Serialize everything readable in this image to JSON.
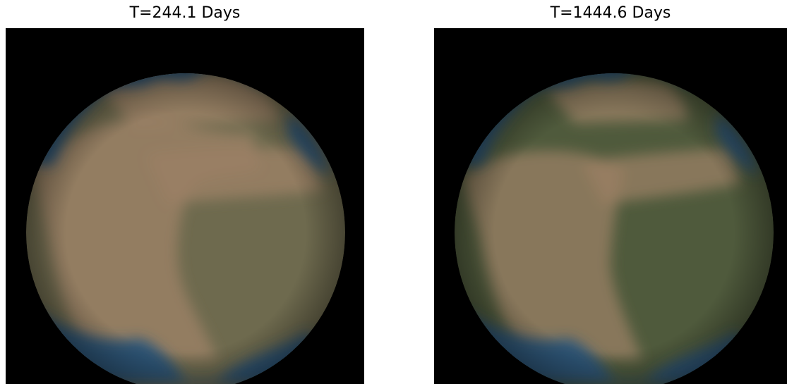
{
  "panels": [
    {
      "title": "T=244.1 Days",
      "land_color": "#6e6a4e",
      "desert_color": "#9a8064",
      "ice_color": "#2f5678",
      "vegetation_fraction": 0.4
    },
    {
      "title": "T=1444.6 Days",
      "land_color": "#4f5a3c",
      "desert_color": "#9a8064",
      "ice_color": "#2f5678",
      "vegetation_fraction": 0.7
    }
  ],
  "colors": {
    "background": "#000000",
    "ice_highlight": "#3d6e8e",
    "ice_dark": "#1f3e5c"
  }
}
